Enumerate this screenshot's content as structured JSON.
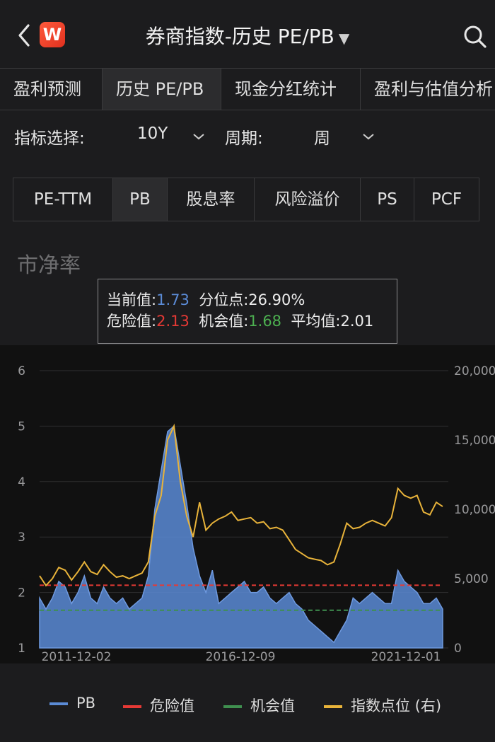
{
  "header": {
    "logo_letter": "W",
    "title": "券商指数-历史 PE/PB",
    "title_caret": "▼"
  },
  "tabs": [
    {
      "label": "盈利预测"
    },
    {
      "label": "历史 PE/PB"
    },
    {
      "label": "现金分红统计"
    },
    {
      "label": "盈利与估值分析"
    }
  ],
  "filters": {
    "indicator_label": "指标选择:",
    "indicator_value": "10Y",
    "period_label": "周期:",
    "period_value": "周"
  },
  "subtabs": [
    {
      "label": "PE-TTM"
    },
    {
      "label": "PB"
    },
    {
      "label": "股息率"
    },
    {
      "label": "风险溢价"
    },
    {
      "label": "PS"
    },
    {
      "label": "PCF"
    }
  ],
  "section_title": "市净率",
  "info": {
    "current_label": "当前值:",
    "current_value": "1.73",
    "percentile_label": "分位点:",
    "percentile_value": "26.90%",
    "danger_label": "危险值:",
    "danger_value": "2.13",
    "opportunity_label": "机会值:",
    "opportunity_value": "1.68",
    "average_label": "平均值:",
    "average_value": "2.01"
  },
  "colors": {
    "pb": "#5b8bd6",
    "danger": "#e53935",
    "opportunity": "#3f8f4f",
    "index": "#e8b33a"
  },
  "legend": [
    {
      "label": "PB",
      "color": "#5b8bd6"
    },
    {
      "label": "危险值",
      "color": "#e53935"
    },
    {
      "label": "机会值",
      "color": "#3f8f4f"
    },
    {
      "label": "指数点位 (右)",
      "color": "#e8b33a"
    }
  ],
  "chart_data": {
    "type": "area",
    "x_ticks": [
      "2011-12-02",
      "2016-12-09",
      "2021-12-01"
    ],
    "y_left_ticks": [
      "1",
      "2",
      "3",
      "4",
      "5",
      "6"
    ],
    "y_right_ticks": [
      "0",
      "5,000",
      "10,000",
      "15,000",
      "20,000"
    ],
    "ylim_left": [
      1,
      6
    ],
    "ylim_right": [
      0,
      20000
    ],
    "danger_line": 2.13,
    "opportunity_line": 1.68,
    "grid": true,
    "legend_position": "bottom",
    "series": [
      {
        "name": "PB",
        "axis": "left",
        "values": [
          1.9,
          1.7,
          1.9,
          2.2,
          2.1,
          1.8,
          2.0,
          2.3,
          1.9,
          1.8,
          2.1,
          1.9,
          1.8,
          1.9,
          1.7,
          1.8,
          1.9,
          2.3,
          3.5,
          4.2,
          4.9,
          5.0,
          4.3,
          3.6,
          2.8,
          2.3,
          2.0,
          2.4,
          1.8,
          1.9,
          2.0,
          2.1,
          2.2,
          2.0,
          2.0,
          2.1,
          1.9,
          1.8,
          1.9,
          2.0,
          1.8,
          1.7,
          1.5,
          1.4,
          1.3,
          1.2,
          1.1,
          1.3,
          1.5,
          1.9,
          1.8,
          1.9,
          2.0,
          1.9,
          1.8,
          1.8,
          2.4,
          2.2,
          2.1,
          2.0,
          1.8,
          1.8,
          1.9,
          1.7
        ]
      },
      {
        "name": "指数点位 (右)",
        "axis": "right",
        "values": [
          5200,
          4500,
          5000,
          5800,
          5600,
          4900,
          5500,
          6200,
          5500,
          5300,
          6000,
          5500,
          5100,
          5200,
          5000,
          5200,
          5400,
          6200,
          9500,
          11000,
          15000,
          16000,
          12000,
          9500,
          8000,
          10500,
          8500,
          9000,
          9300,
          9500,
          9800,
          9200,
          9300,
          9400,
          9000,
          9100,
          8600,
          8700,
          8500,
          7800,
          7100,
          6800,
          6500,
          6400,
          6300,
          6000,
          6200,
          7500,
          9000,
          8600,
          8700,
          9000,
          9200,
          9000,
          8800,
          9400,
          11500,
          11000,
          10800,
          11000,
          9800,
          9600,
          10500,
          10200
        ]
      }
    ]
  }
}
